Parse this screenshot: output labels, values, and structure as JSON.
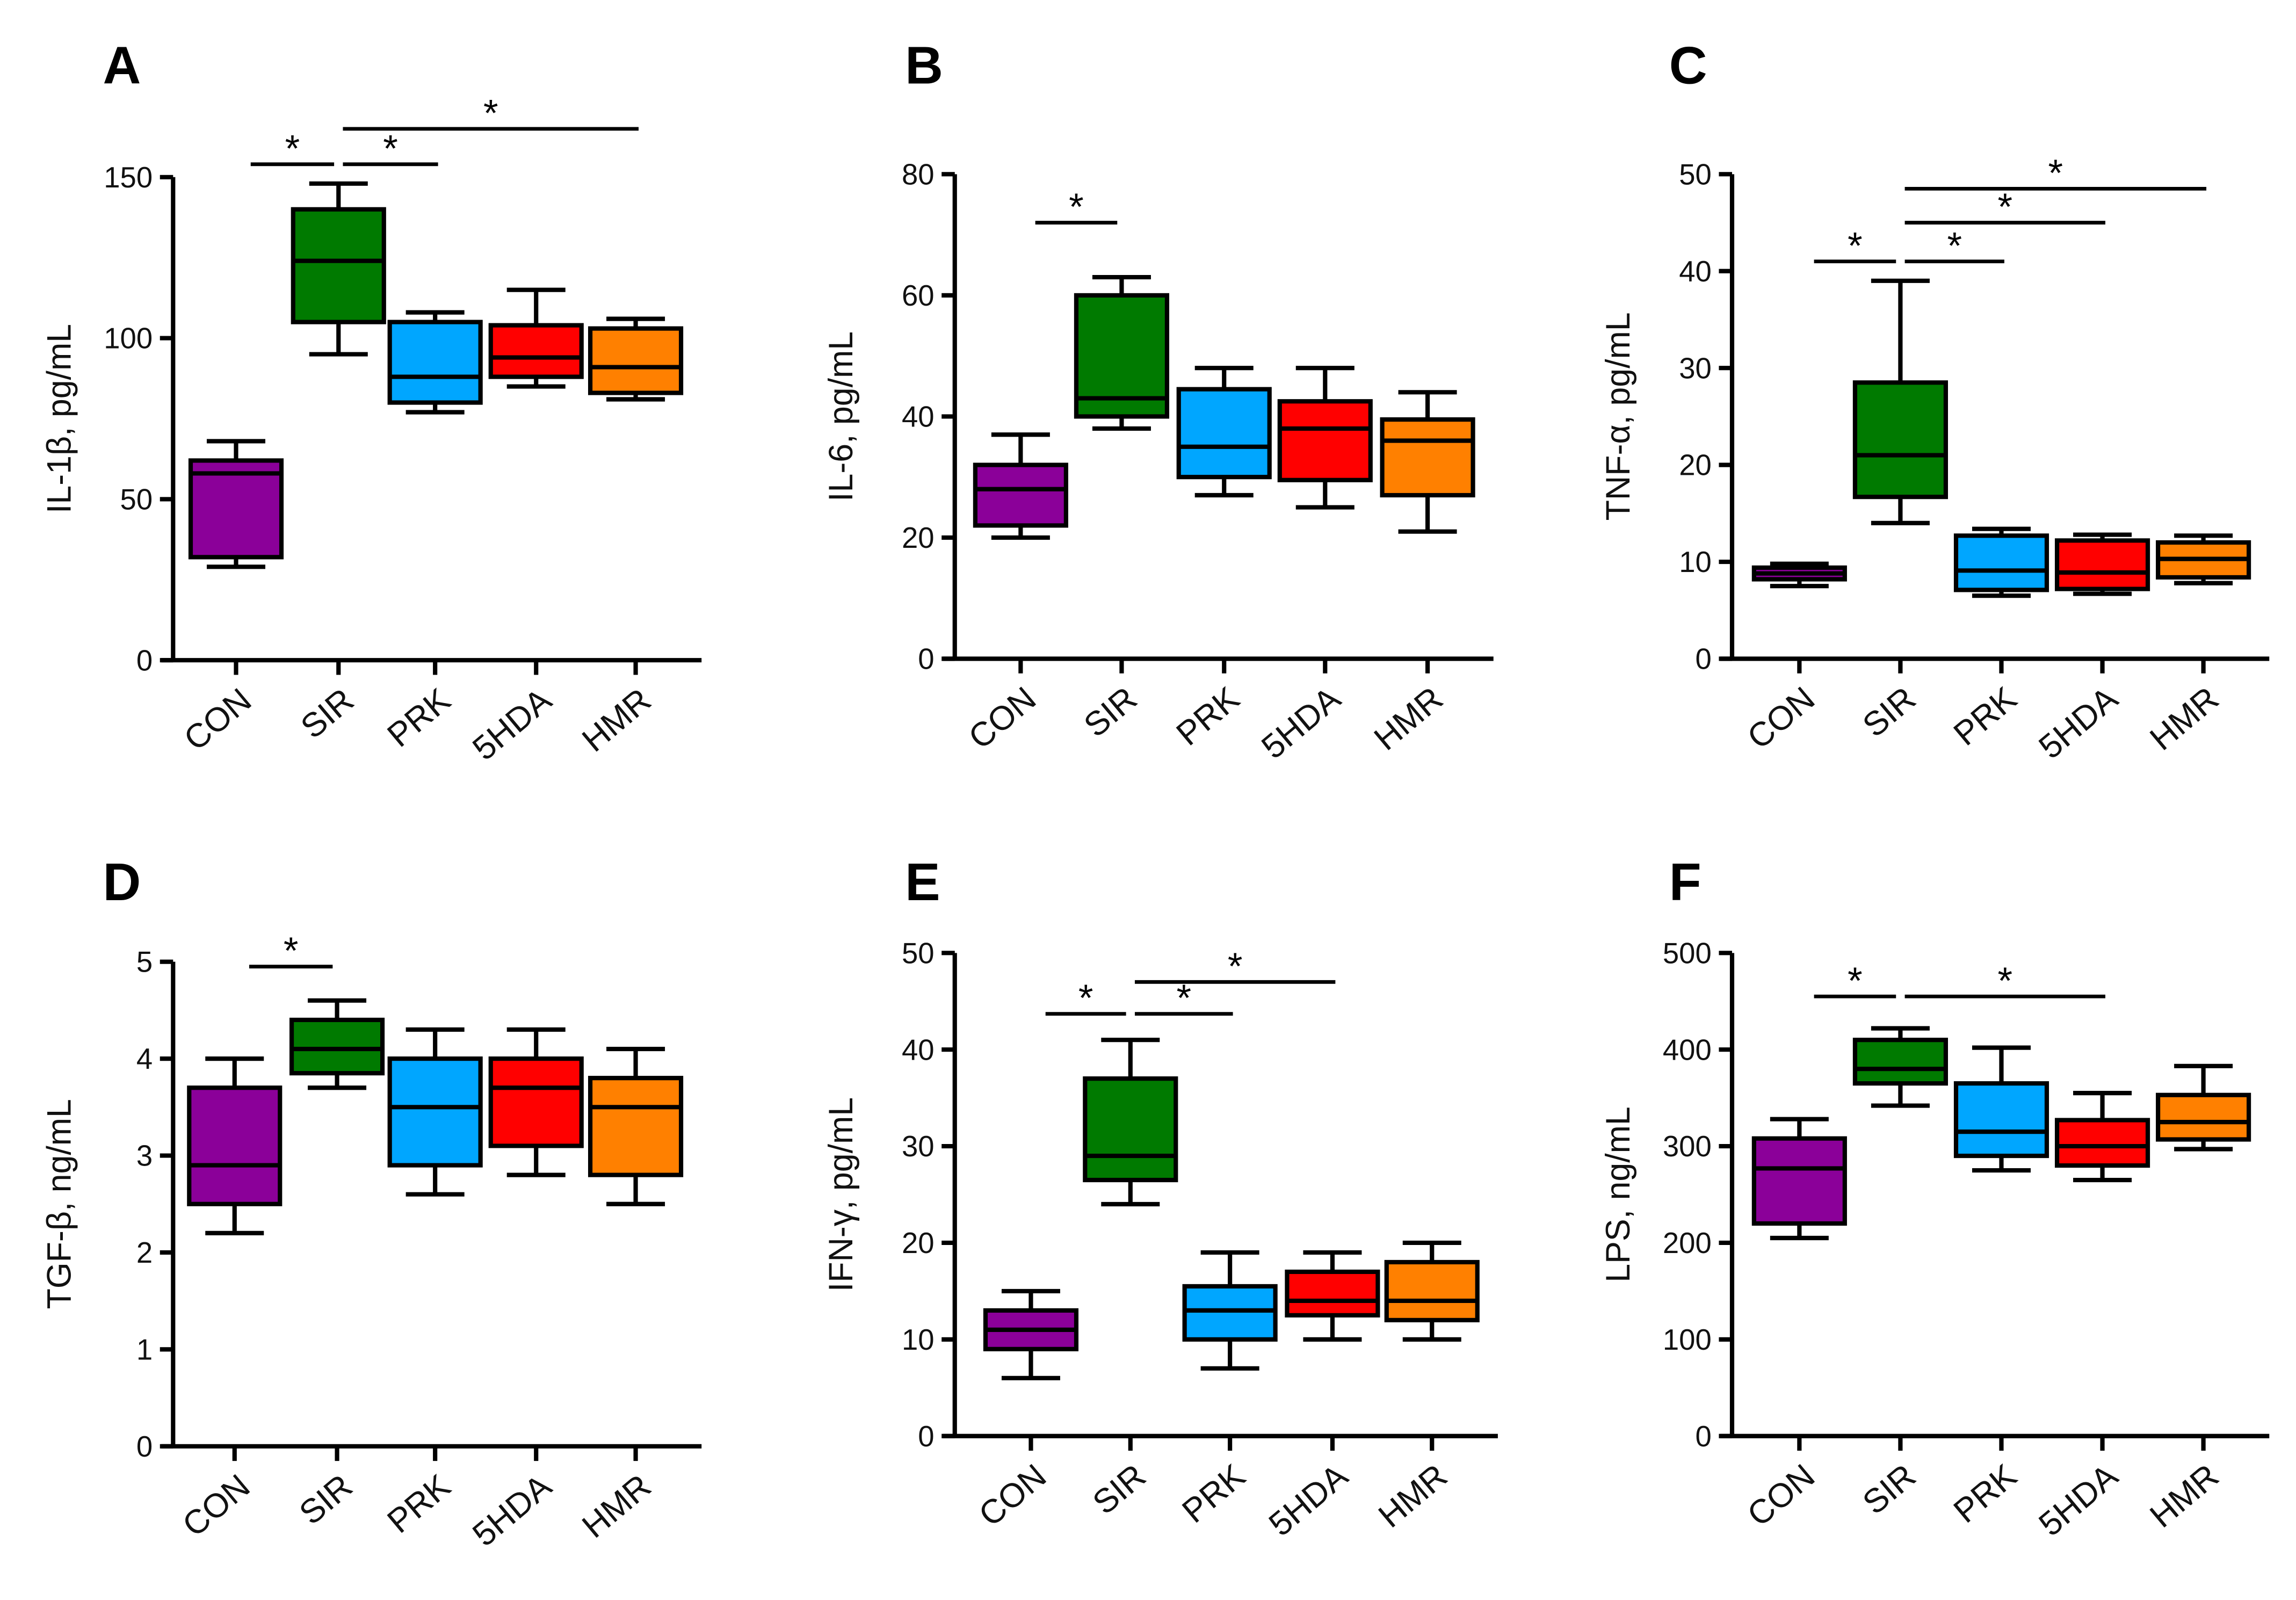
{
  "chart_data": [
    {
      "type": "box",
      "panel": "A",
      "ylabel": "IL-1β, pg/mL",
      "ylim": [
        0,
        150
      ],
      "yticks": [
        0,
        50,
        100,
        150
      ],
      "categories": [
        "CON",
        "SIR",
        "PRK",
        "5HDA",
        "HMR"
      ],
      "boxes": [
        [
          29,
          32,
          58,
          62,
          68
        ],
        [
          95,
          105,
          124,
          140,
          148
        ],
        [
          77,
          80,
          88,
          105,
          108
        ],
        [
          85,
          88,
          94,
          104,
          115
        ],
        [
          81,
          83,
          91,
          103,
          106
        ]
      ],
      "significance": [
        {
          "from": 0,
          "to": 1,
          "y": 154,
          "label": "*"
        },
        {
          "from": 1,
          "to": 2,
          "y": 154,
          "label": "*"
        },
        {
          "from": 1,
          "to": 4,
          "y": 165,
          "label": "*"
        }
      ]
    },
    {
      "type": "box",
      "panel": "B",
      "ylabel": "IL-6, pg/mL",
      "ylim": [
        0,
        80
      ],
      "yticks": [
        0,
        20,
        40,
        60,
        80
      ],
      "categories": [
        "CON",
        "SIR",
        "PRK",
        "5HDA",
        "HMR"
      ],
      "boxes": [
        [
          20,
          22,
          28,
          32,
          37
        ],
        [
          38,
          40,
          43,
          60,
          63
        ],
        [
          27,
          30,
          35,
          44.5,
          48
        ],
        [
          25,
          29.5,
          38,
          42.5,
          48
        ],
        [
          21,
          27,
          36,
          39.5,
          44
        ]
      ],
      "significance": [
        {
          "from": 0,
          "to": 1,
          "y": 72,
          "label": "*"
        }
      ]
    },
    {
      "type": "box",
      "panel": "C",
      "ylabel": "TNF-α, pg/mL",
      "ylim": [
        0,
        50
      ],
      "yticks": [
        0,
        10,
        20,
        30,
        40,
        50
      ],
      "categories": [
        "CON",
        "SIR",
        "PRK",
        "5HDA",
        "HMR"
      ],
      "boxes": [
        [
          7.5,
          8.2,
          8.8,
          9.4,
          9.8
        ],
        [
          14,
          16.7,
          21,
          28.5,
          39
        ],
        [
          6.5,
          7.1,
          9.1,
          12.7,
          13.4
        ],
        [
          6.7,
          7.2,
          8.9,
          12.2,
          12.8
        ],
        [
          7.8,
          8.4,
          10.3,
          12,
          12.7
        ]
      ],
      "significance": [
        {
          "from": 0,
          "to": 1,
          "y": 41,
          "label": "*"
        },
        {
          "from": 1,
          "to": 2,
          "y": 41,
          "label": "*"
        },
        {
          "from": 1,
          "to": 3,
          "y": 45,
          "label": "*"
        },
        {
          "from": 1,
          "to": 4,
          "y": 48.5,
          "label": "*"
        }
      ]
    },
    {
      "type": "box",
      "panel": "D",
      "ylabel": "TGF-β, ng/mL",
      "ylim": [
        0,
        5
      ],
      "yticks": [
        0,
        1,
        2,
        3,
        4,
        5
      ],
      "categories": [
        "CON",
        "SIR",
        "PRK",
        "5HDA",
        "HMR"
      ],
      "boxes": [
        [
          2.2,
          2.5,
          2.9,
          3.7,
          4.0
        ],
        [
          3.7,
          3.85,
          4.1,
          4.4,
          4.6
        ],
        [
          2.6,
          2.9,
          3.5,
          4.0,
          4.3
        ],
        [
          2.8,
          3.1,
          3.7,
          4.0,
          4.3
        ],
        [
          2.5,
          2.8,
          3.5,
          3.8,
          4.1
        ]
      ],
      "significance": [
        {
          "from": 0,
          "to": 1,
          "y": 4.95,
          "label": "*"
        }
      ]
    },
    {
      "type": "box",
      "panel": "E",
      "ylabel": "IFN-γ, pg/mL",
      "ylim": [
        0,
        50
      ],
      "yticks": [
        0,
        10,
        20,
        30,
        40,
        50
      ],
      "categories": [
        "CON",
        "SIR",
        "PRK",
        "5HDA",
        "HMR"
      ],
      "boxes": [
        [
          6,
          9,
          11,
          13,
          15
        ],
        [
          24,
          26.5,
          29,
          37,
          41
        ],
        [
          7,
          10,
          13,
          15.5,
          19
        ],
        [
          10,
          12.5,
          14,
          17,
          19
        ],
        [
          10,
          12,
          14,
          18,
          20
        ]
      ],
      "significance": [
        {
          "from": 0,
          "to": 1,
          "y": 43.7,
          "label": "*"
        },
        {
          "from": 1,
          "to": 2,
          "y": 43.7,
          "label": "*"
        },
        {
          "from": 1,
          "to": 3,
          "y": 47,
          "label": "*"
        }
      ]
    },
    {
      "type": "box",
      "panel": "F",
      "ylabel": "LPS, ng/mL",
      "ylim": [
        0,
        500
      ],
      "yticks": [
        0,
        100,
        200,
        300,
        400,
        500
      ],
      "categories": [
        "CON",
        "SIR",
        "PRK",
        "5HDA",
        "HMR"
      ],
      "boxes": [
        [
          205,
          220,
          277,
          308,
          328
        ],
        [
          342,
          365,
          380,
          410,
          422
        ],
        [
          275,
          290,
          315,
          365,
          402
        ],
        [
          265,
          280,
          300,
          327,
          355
        ],
        [
          297,
          307,
          325,
          353,
          383
        ]
      ],
      "significance": [
        {
          "from": 0,
          "to": 1,
          "y": 455,
          "label": "*"
        },
        {
          "from": 1,
          "to": 3,
          "y": 455,
          "label": "*"
        }
      ]
    }
  ],
  "colors": [
    "#8B0099",
    "#007A00",
    "#00A6FF",
    "#FF0000",
    "#FF8000"
  ]
}
